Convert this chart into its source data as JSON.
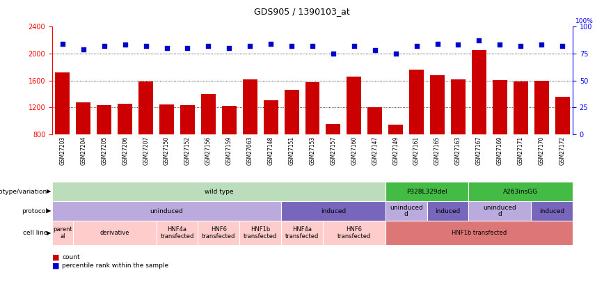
{
  "title": "GDS905 / 1390103_at",
  "samples": [
    "GSM27203",
    "GSM27204",
    "GSM27205",
    "GSM27206",
    "GSM27207",
    "GSM27150",
    "GSM27152",
    "GSM27156",
    "GSM27159",
    "GSM27063",
    "GSM27148",
    "GSM27151",
    "GSM27153",
    "GSM27157",
    "GSM27160",
    "GSM27147",
    "GSM27149",
    "GSM27161",
    "GSM27165",
    "GSM27163",
    "GSM27167",
    "GSM27169",
    "GSM27171",
    "GSM27170",
    "GSM27172"
  ],
  "counts": [
    1720,
    1270,
    1230,
    1250,
    1580,
    1240,
    1230,
    1400,
    1220,
    1620,
    1310,
    1460,
    1570,
    960,
    1660,
    1200,
    940,
    1760,
    1680,
    1620,
    2050,
    1610,
    1580,
    1600,
    1360
  ],
  "percentile": [
    84,
    79,
    82,
    83,
    82,
    80,
    80,
    82,
    80,
    82,
    84,
    82,
    82,
    75,
    82,
    78,
    75,
    82,
    84,
    83,
    87,
    83,
    82,
    83,
    82
  ],
  "ylim_left": [
    800,
    2400
  ],
  "ylim_right": [
    0,
    100
  ],
  "yticks_left": [
    800,
    1200,
    1600,
    2000,
    2400
  ],
  "yticks_right": [
    0,
    25,
    50,
    75,
    100
  ],
  "bar_color": "#cc0000",
  "dot_color": "#0000cc",
  "bg_color": "#ffffff",
  "genotype_row": {
    "label": "genotype/variation",
    "segments": [
      {
        "text": "wild type",
        "start": 0,
        "end": 16,
        "color": "#bbddbb"
      },
      {
        "text": "P328L329del",
        "start": 16,
        "end": 20,
        "color": "#44bb44"
      },
      {
        "text": "A263insGG",
        "start": 20,
        "end": 25,
        "color": "#44bb44"
      }
    ]
  },
  "protocol_row": {
    "label": "protocol",
    "segments": [
      {
        "text": "uninduced",
        "start": 0,
        "end": 11,
        "color": "#bbaadd"
      },
      {
        "text": "induced",
        "start": 11,
        "end": 16,
        "color": "#7766bb"
      },
      {
        "text": "uninduced\nd",
        "start": 16,
        "end": 18,
        "color": "#bbaadd"
      },
      {
        "text": "induced",
        "start": 18,
        "end": 20,
        "color": "#7766bb"
      },
      {
        "text": "uninduced\nd",
        "start": 20,
        "end": 23,
        "color": "#bbaadd"
      },
      {
        "text": "induced",
        "start": 23,
        "end": 25,
        "color": "#7766bb"
      }
    ]
  },
  "cellline_row": {
    "label": "cell line",
    "segments": [
      {
        "text": "parent\nal",
        "start": 0,
        "end": 1,
        "color": "#ffcccc"
      },
      {
        "text": "derivative",
        "start": 1,
        "end": 5,
        "color": "#ffcccc"
      },
      {
        "text": "HNF4a\ntransfected",
        "start": 5,
        "end": 7,
        "color": "#ffcccc"
      },
      {
        "text": "HNF6\ntransfected",
        "start": 7,
        "end": 9,
        "color": "#ffcccc"
      },
      {
        "text": "HNF1b\ntransfected",
        "start": 9,
        "end": 11,
        "color": "#ffcccc"
      },
      {
        "text": "HNF4a\ntransfected",
        "start": 11,
        "end": 13,
        "color": "#ffcccc"
      },
      {
        "text": "HNF6\ntransfected",
        "start": 13,
        "end": 16,
        "color": "#ffcccc"
      },
      {
        "text": "HNF1b transfected",
        "start": 16,
        "end": 25,
        "color": "#dd7777"
      }
    ]
  },
  "legend": [
    {
      "color": "#cc0000",
      "label": "count"
    },
    {
      "color": "#0000cc",
      "label": "percentile rank within the sample"
    }
  ]
}
